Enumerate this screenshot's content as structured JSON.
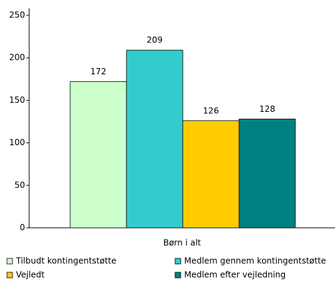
{
  "chart_data": {
    "type": "bar",
    "categories": [
      "Børn i alt"
    ],
    "series": [
      {
        "name": "Tilbudt kontingentstøtte",
        "color": "#ccffcc",
        "values": [
          172
        ]
      },
      {
        "name": "Medlem gennem kontingentstøtte",
        "color": "#33cccc",
        "values": [
          209
        ]
      },
      {
        "name": "Vejledt",
        "color": "#ffcc00",
        "values": [
          126
        ]
      },
      {
        "name": "Medlem efter vejledning",
        "color": "#008080",
        "values": [
          128
        ]
      }
    ],
    "ylim": [
      0,
      250
    ],
    "yticks": [
      0,
      50,
      100,
      150,
      200,
      250
    ],
    "grid": false,
    "legend": "bottom"
  }
}
